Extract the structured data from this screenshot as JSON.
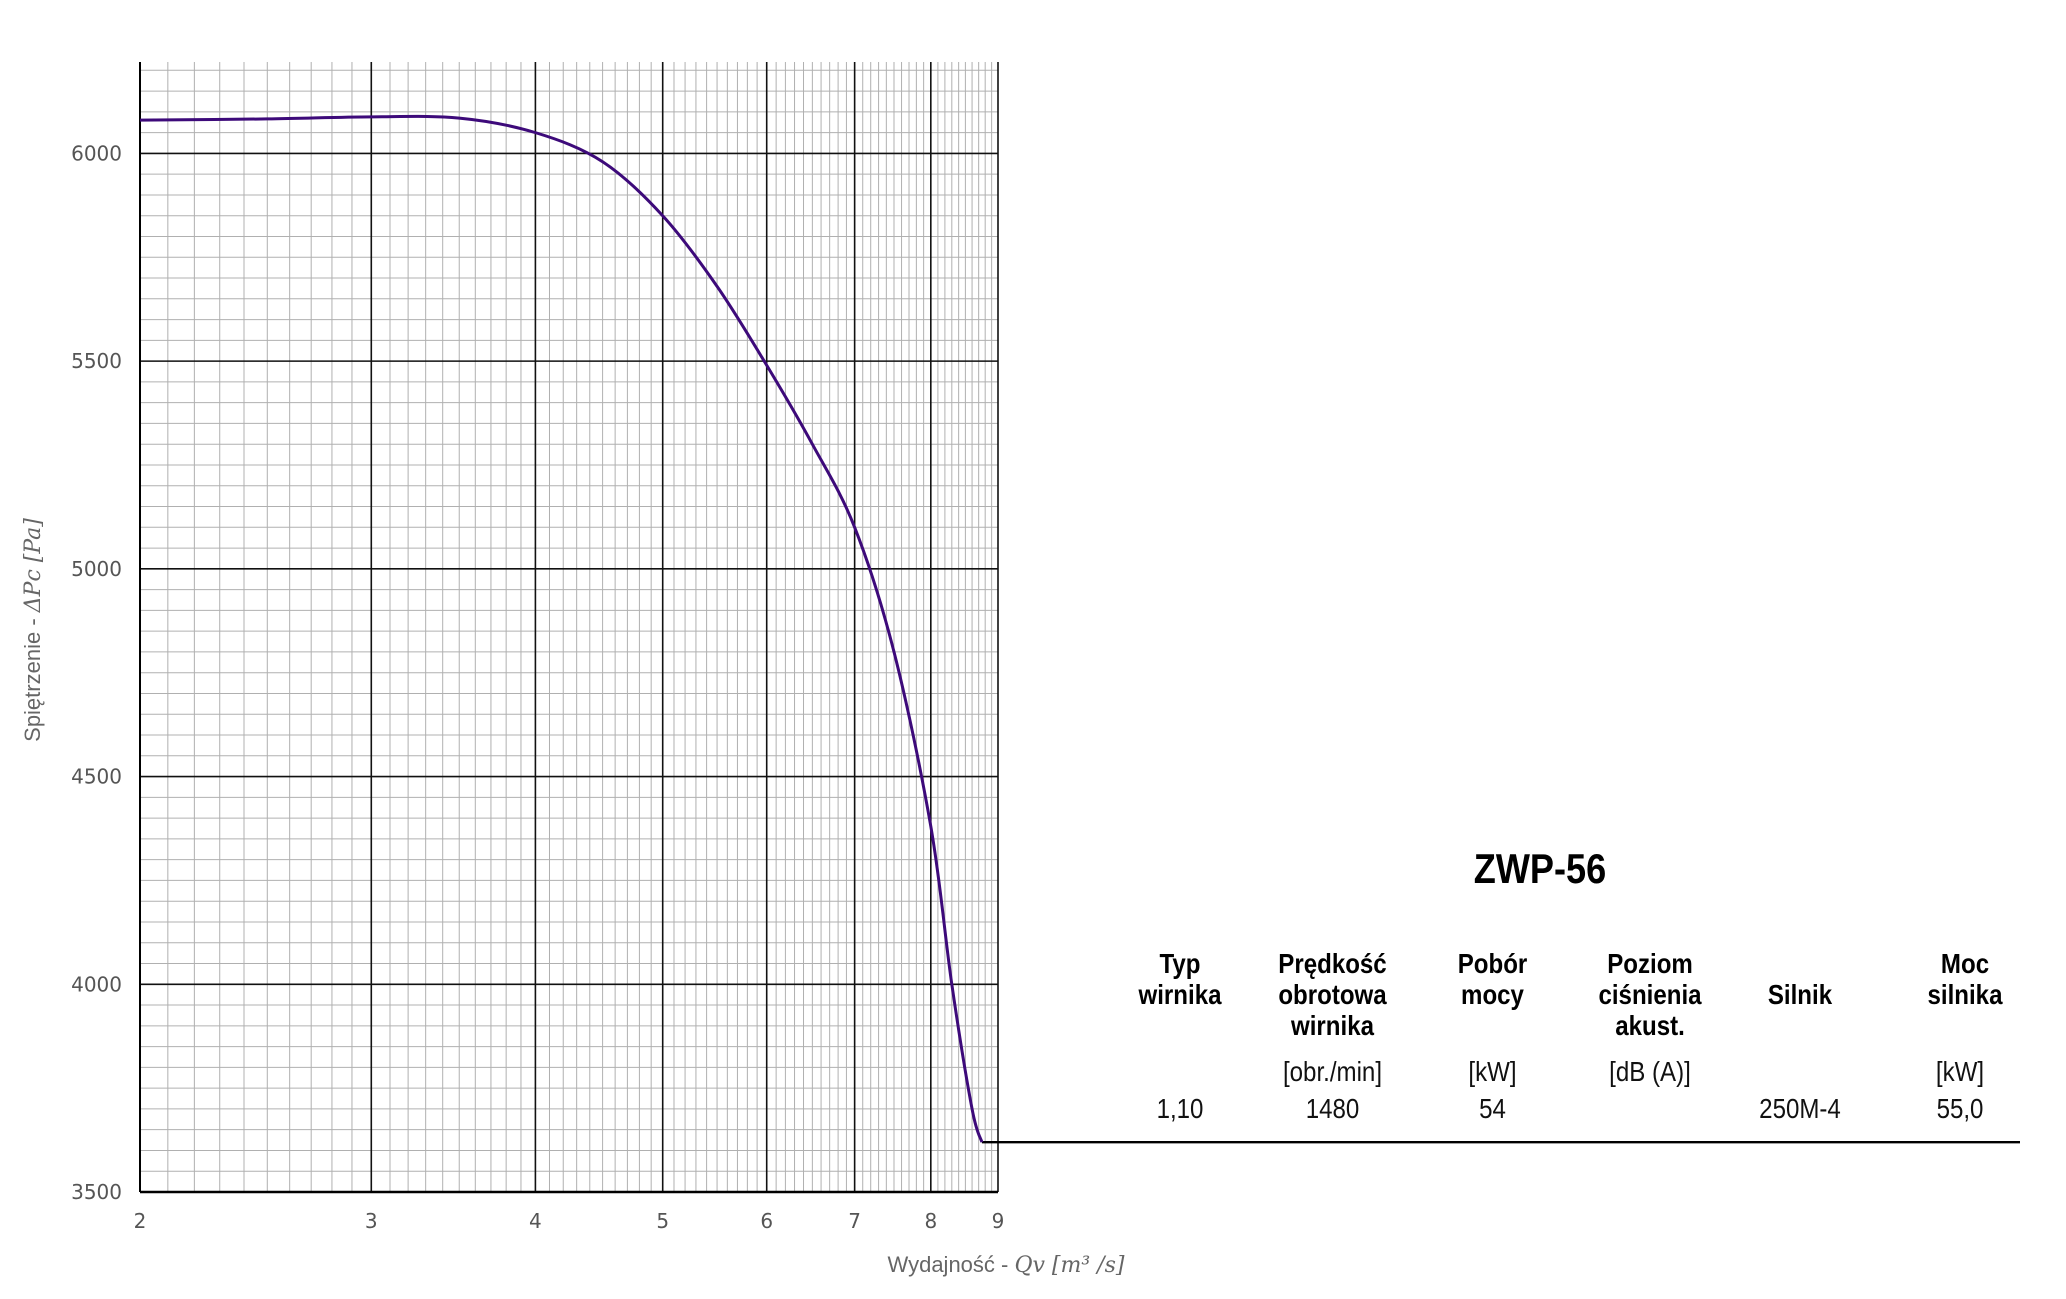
{
  "chart_data": {
    "type": "line",
    "x_scale": "log",
    "x_ticks": [
      2,
      3,
      4,
      5,
      6,
      7,
      8,
      9
    ],
    "y_ticks": [
      3500,
      4000,
      4500,
      5000,
      5500,
      6000
    ],
    "xlim": [
      2,
      9
    ],
    "ylim": [
      3500,
      6220
    ],
    "grid": true,
    "xlabel_text": "Wydajność - ",
    "xlabel_math": "Qv [m³ /s]",
    "ylabel_text": "Spiętrzenie - ",
    "ylabel_math": "ΔPc [Pa]",
    "series": [
      {
        "color": "#3d0a7a",
        "x": [
          2.0,
          2.5,
          3.0,
          3.5,
          4.0,
          4.5,
          5.0,
          5.5,
          6.0,
          6.5,
          7.0,
          7.5,
          8.0,
          8.3,
          8.6,
          8.75
        ],
        "y": [
          6080,
          6083,
          6088,
          6085,
          6050,
          5980,
          5850,
          5680,
          5490,
          5300,
          5100,
          4800,
          4380,
          4000,
          3700,
          3620
        ]
      }
    ],
    "baseline_y": 3620
  },
  "table": {
    "title": "ZWP-56",
    "headers": [
      "Typ\nwirnika",
      "Prędkość\nobrotowa\nwirnika",
      "Pobór\nmocy",
      "Poziom\nciśnienia\nakust.",
      "Silnik",
      "Moc\nsilnika"
    ],
    "units": [
      "",
      "[obr./min]",
      "[kW]",
      "[dB (A)]",
      "",
      "[kW]"
    ],
    "values": [
      "1,10",
      "1480",
      "54",
      "",
      "250M-4",
      "55,0"
    ]
  }
}
